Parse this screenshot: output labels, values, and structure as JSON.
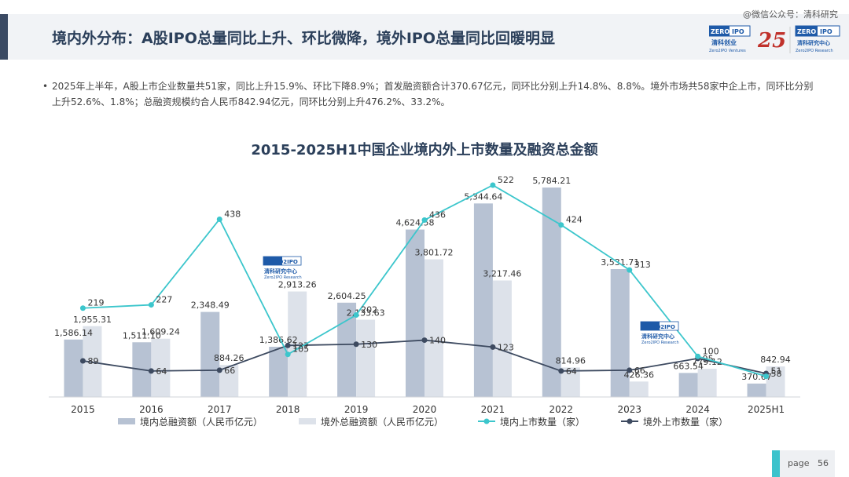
{
  "header": {
    "title": "境内外分布：A股IPO总量同比上升、环比微降，境外IPO总量同比回暖明显",
    "watermark": "@微信公众号：清科研究",
    "logos": {
      "zero2ipo_ventures_cn": "清科创业",
      "zero2ipo_ventures_en": "Zero2IPO Ventures",
      "anniversary": "25",
      "research_cn": "清科研究中心",
      "research_en": "Zero2IPO Research",
      "brand": "ZERO2IPO"
    }
  },
  "bullet": {
    "marker": "•",
    "text": "2025年上半年，A股上市企业数量共51家，同比上升15.9%、环比下降8.9%；首发融资额合计370.67亿元，同环比分别上升14.8%、8.8%。境外市场共58家中企上市，同环比分别上升52.6%、1.8%；总融资规模约合人民币842.94亿元，同环比分别上升476.2%、33.2%。"
  },
  "chart_data": {
    "type": "bar",
    "title": "2015-2025H1中国企业境内外上市数量及融资总金额",
    "categories": [
      "2015",
      "2016",
      "2017",
      "2018",
      "2019",
      "2020",
      "2021",
      "2022",
      "2023",
      "2024",
      "2025H1"
    ],
    "series": [
      {
        "name": "境内总融资额（人民币亿元）",
        "type": "bar",
        "color": "#b7c2d3",
        "labels": [
          "1,586.14",
          "1,511.10",
          "2,348.49",
          "1,386.62",
          "2,604.25",
          "4,624.58",
          "5,344.64",
          "5,784.21",
          "3,531.71",
          "663.54",
          "370.67"
        ],
        "values": [
          1586.14,
          1511.1,
          2348.49,
          1386.62,
          2604.25,
          4624.58,
          5344.64,
          5784.21,
          3531.71,
          663.54,
          370.67
        ]
      },
      {
        "name": "境外总融资额（人民币亿元）",
        "type": "bar",
        "color": "#dde2ea",
        "labels": [
          "1,955.31",
          "1,609.24",
          "884.26",
          "2,913.26",
          "2,133.63",
          "3,801.72",
          "3,217.46",
          "814.96",
          "426.36",
          "779.12",
          "842.94"
        ],
        "values": [
          1955.31,
          1609.24,
          884.26,
          2913.26,
          2133.63,
          3801.72,
          3217.46,
          814.96,
          426.36,
          779.12,
          842.94
        ]
      },
      {
        "name": "境内上市数量（家）",
        "type": "line",
        "color": "#3cc6cc",
        "values": [
          219,
          227,
          438,
          105,
          202,
          436,
          522,
          424,
          313,
          100,
          51
        ]
      },
      {
        "name": "境外上市数量（家）",
        "type": "line",
        "color": "#3d4a60",
        "values": [
          89,
          64,
          66,
          127,
          130,
          140,
          123,
          64,
          66,
          95,
          58
        ]
      }
    ],
    "ylim_bars": [
      0,
      6500
    ],
    "ylim_lines": [
      0,
      580
    ],
    "legend_position": "bottom",
    "grid": false
  },
  "page": {
    "label": "page",
    "number": "56"
  }
}
